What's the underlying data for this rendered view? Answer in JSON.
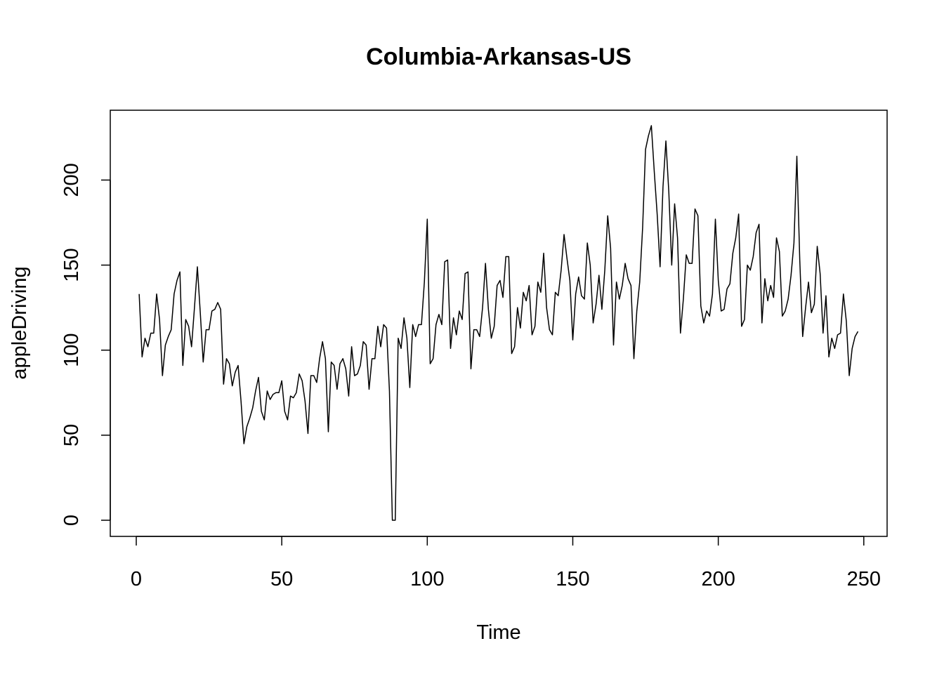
{
  "chart_data": {
    "type": "line",
    "title": "Columbia-Arkansas-US",
    "xlabel": "Time",
    "ylabel": "appleDriving",
    "xlim": [
      1,
      248
    ],
    "ylim": [
      0,
      232
    ],
    "grid": false,
    "legend": "none",
    "x_ticks": [
      0,
      50,
      100,
      150,
      200,
      250
    ],
    "y_ticks": [
      0,
      50,
      100,
      150,
      200
    ],
    "line_color": "#000000",
    "series": [
      {
        "values": [
          133,
          96,
          107,
          102,
          110,
          110,
          133,
          118,
          85,
          103,
          108,
          112,
          133,
          141,
          146,
          91,
          118,
          114,
          102,
          125,
          149,
          122,
          93,
          112,
          112,
          123,
          124,
          128,
          124,
          80,
          95,
          92,
          79,
          87,
          91,
          70,
          45,
          55,
          60,
          66,
          76,
          84,
          64,
          59,
          76,
          71,
          74,
          75,
          75,
          82,
          64,
          59,
          73,
          72,
          75,
          86,
          82,
          70,
          51,
          85,
          85,
          81,
          95,
          105,
          95,
          52,
          93,
          91,
          77,
          92,
          95,
          89,
          73,
          102,
          85,
          86,
          91,
          105,
          103,
          77,
          95,
          95,
          114,
          102,
          115,
          113,
          76,
          0,
          0,
          107,
          101,
          119,
          107,
          78,
          115,
          108,
          115,
          115,
          140,
          177,
          92,
          95,
          115,
          121,
          115,
          152,
          153,
          101,
          119,
          109,
          123,
          118,
          145,
          146,
          89,
          112,
          112,
          108,
          125,
          151,
          124,
          107,
          114,
          138,
          141,
          131,
          155,
          155,
          98,
          102,
          125,
          113,
          134,
          129,
          138,
          109,
          114,
          140,
          134,
          157,
          125,
          112,
          109,
          134,
          132,
          147,
          168,
          154,
          141,
          106,
          133,
          143,
          132,
          130,
          163,
          150,
          116,
          127,
          144,
          124,
          147,
          179,
          160,
          103,
          140,
          130,
          138,
          151,
          142,
          138,
          95,
          123,
          140,
          172,
          218,
          226,
          232,
          205,
          180,
          149,
          196,
          223,
          193,
          150,
          186,
          166,
          110,
          130,
          156,
          151,
          151,
          183,
          179,
          126,
          116,
          123,
          120,
          133,
          177,
          141,
          123,
          124,
          136,
          139,
          157,
          166,
          180,
          114,
          118,
          150,
          147,
          155,
          169,
          174,
          116,
          142,
          129,
          138,
          131,
          166,
          158,
          120,
          123,
          130,
          144,
          163,
          214,
          153,
          108,
          125,
          140,
          122,
          127,
          161,
          145,
          110,
          132,
          96,
          107,
          101,
          109,
          110,
          133,
          117,
          85,
          101,
          108,
          111
        ]
      }
    ]
  }
}
